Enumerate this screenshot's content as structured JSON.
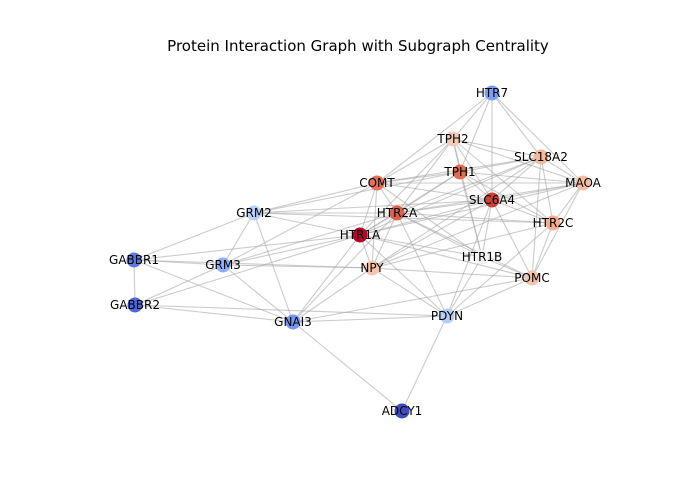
{
  "graph": {
    "title": "Protein Interaction Graph with Subgraph Centrality",
    "colormap": "coolwarm",
    "nodes": [
      {
        "id": "HTR7",
        "label": "HTR7",
        "color": "#7b9ff9"
      },
      {
        "id": "TPH2",
        "label": "TPH2",
        "color": "#f2cbb7"
      },
      {
        "id": "SLC18A2",
        "label": "SLC18A2",
        "color": "#f7b89c"
      },
      {
        "id": "TPH1",
        "label": "TPH1",
        "color": "#e36c55"
      },
      {
        "id": "COMT",
        "label": "COMT",
        "color": "#e57058"
      },
      {
        "id": "MAOA",
        "label": "MAOA",
        "color": "#f6bda2"
      },
      {
        "id": "SLC6A4",
        "label": "SLC6A4",
        "color": "#cc403a"
      },
      {
        "id": "GRM2",
        "label": "GRM2",
        "color": "#b9d0f9"
      },
      {
        "id": "HTR2A",
        "label": "HTR2A",
        "color": "#de614d"
      },
      {
        "id": "HTR2C",
        "label": "HTR2C",
        "color": "#f7ad90"
      },
      {
        "id": "HTR1A",
        "label": "HTR1A",
        "color": "#b40426"
      },
      {
        "id": "GABBR1",
        "label": "GABBR1",
        "color": "#5b7ae5"
      },
      {
        "id": "GRM3",
        "label": "GRM3",
        "color": "#8caffe"
      },
      {
        "id": "NPY",
        "label": "NPY",
        "color": "#f5c4ac"
      },
      {
        "id": "HTR1B",
        "label": "HTR1B",
        "color": "#f2f2f2"
      },
      {
        "id": "POMC",
        "label": "POMC",
        "color": "#f4c5ad"
      },
      {
        "id": "GABBR2",
        "label": "GABBR2",
        "color": "#4e68d8"
      },
      {
        "id": "GNAI3",
        "label": "GNAI3",
        "color": "#7396f5"
      },
      {
        "id": "PDYN",
        "label": "PDYN",
        "color": "#b5cdfa"
      },
      {
        "id": "ADCY1",
        "label": "ADCY1",
        "color": "#3b4cc0"
      }
    ],
    "edges": [
      [
        "HTR7",
        "TPH2"
      ],
      [
        "HTR7",
        "SLC18A2"
      ],
      [
        "HTR7",
        "TPH1"
      ],
      [
        "HTR7",
        "SLC6A4"
      ],
      [
        "HTR7",
        "MAOA"
      ],
      [
        "HTR7",
        "COMT"
      ],
      [
        "TPH2",
        "SLC18A2"
      ],
      [
        "TPH2",
        "TPH1"
      ],
      [
        "TPH2",
        "COMT"
      ],
      [
        "TPH2",
        "MAOA"
      ],
      [
        "TPH2",
        "SLC6A4"
      ],
      [
        "TPH2",
        "HTR2A"
      ],
      [
        "TPH2",
        "HTR1A"
      ],
      [
        "TPH2",
        "HTR2C"
      ],
      [
        "TPH2",
        "HTR1B"
      ],
      [
        "SLC18A2",
        "TPH1"
      ],
      [
        "SLC18A2",
        "COMT"
      ],
      [
        "SLC18A2",
        "MAOA"
      ],
      [
        "SLC18A2",
        "SLC6A4"
      ],
      [
        "SLC18A2",
        "HTR2A"
      ],
      [
        "SLC18A2",
        "HTR1A"
      ],
      [
        "SLC18A2",
        "HTR2C"
      ],
      [
        "SLC18A2",
        "NPY"
      ],
      [
        "SLC18A2",
        "POMC"
      ],
      [
        "TPH1",
        "COMT"
      ],
      [
        "TPH1",
        "MAOA"
      ],
      [
        "TPH1",
        "SLC6A4"
      ],
      [
        "TPH1",
        "HTR2A"
      ],
      [
        "TPH1",
        "HTR1A"
      ],
      [
        "TPH1",
        "HTR1B"
      ],
      [
        "TPH1",
        "GRM2"
      ],
      [
        "TPH1",
        "HTR2C"
      ],
      [
        "COMT",
        "MAOA"
      ],
      [
        "COMT",
        "SLC6A4"
      ],
      [
        "COMT",
        "HTR2A"
      ],
      [
        "COMT",
        "HTR1A"
      ],
      [
        "COMT",
        "GRM2"
      ],
      [
        "COMT",
        "NPY"
      ],
      [
        "COMT",
        "GRM3"
      ],
      [
        "COMT",
        "HTR1B"
      ],
      [
        "MAOA",
        "SLC6A4"
      ],
      [
        "MAOA",
        "HTR2A"
      ],
      [
        "MAOA",
        "HTR1A"
      ],
      [
        "MAOA",
        "HTR2C"
      ],
      [
        "MAOA",
        "POMC"
      ],
      [
        "MAOA",
        "NPY"
      ],
      [
        "SLC6A4",
        "HTR2A"
      ],
      [
        "SLC6A4",
        "HTR1A"
      ],
      [
        "SLC6A4",
        "HTR2C"
      ],
      [
        "SLC6A4",
        "HTR1B"
      ],
      [
        "SLC6A4",
        "NPY"
      ],
      [
        "SLC6A4",
        "POMC"
      ],
      [
        "SLC6A4",
        "PDYN"
      ],
      [
        "SLC6A4",
        "GRM2"
      ],
      [
        "GRM2",
        "HTR2A"
      ],
      [
        "GRM2",
        "HTR1A"
      ],
      [
        "GRM2",
        "GRM3"
      ],
      [
        "GRM2",
        "GABBR1"
      ],
      [
        "GRM2",
        "GNAI3"
      ],
      [
        "GRM2",
        "HTR2C"
      ],
      [
        "HTR2A",
        "HTR1A"
      ],
      [
        "HTR2A",
        "HTR2C"
      ],
      [
        "HTR2A",
        "NPY"
      ],
      [
        "HTR2A",
        "HTR1B"
      ],
      [
        "HTR2A",
        "POMC"
      ],
      [
        "HTR2A",
        "GRM3"
      ],
      [
        "HTR2A",
        "GNAI3"
      ],
      [
        "HTR2A",
        "PDYN"
      ],
      [
        "HTR1A",
        "NPY"
      ],
      [
        "HTR1A",
        "HTR1B"
      ],
      [
        "HTR1A",
        "POMC"
      ],
      [
        "HTR1A",
        "GABBR1"
      ],
      [
        "HTR1A",
        "GRM3"
      ],
      [
        "HTR1A",
        "GNAI3"
      ],
      [
        "HTR1A",
        "PDYN"
      ],
      [
        "HTR1A",
        "GABBR2"
      ],
      [
        "HTR2C",
        "POMC"
      ],
      [
        "HTR2C",
        "NPY"
      ],
      [
        "HTR2C",
        "PDYN"
      ],
      [
        "GABBR1",
        "GRM3"
      ],
      [
        "GABBR1",
        "GABBR2"
      ],
      [
        "GABBR1",
        "GNAI3"
      ],
      [
        "GABBR1",
        "NPY"
      ],
      [
        "GRM3",
        "GABBR2"
      ],
      [
        "GRM3",
        "GNAI3"
      ],
      [
        "GRM3",
        "NPY"
      ],
      [
        "NPY",
        "POMC"
      ],
      [
        "NPY",
        "PDYN"
      ],
      [
        "NPY",
        "GNAI3"
      ],
      [
        "HTR1B",
        "POMC"
      ],
      [
        "HTR1B",
        "PDYN"
      ],
      [
        "POMC",
        "PDYN"
      ],
      [
        "POMC",
        "GNAI3"
      ],
      [
        "GABBR2",
        "GNAI3"
      ],
      [
        "GABBR2",
        "PDYN"
      ],
      [
        "GNAI3",
        "PDYN"
      ],
      [
        "GNAI3",
        "ADCY1"
      ],
      [
        "PDYN",
        "ADCY1"
      ]
    ]
  }
}
